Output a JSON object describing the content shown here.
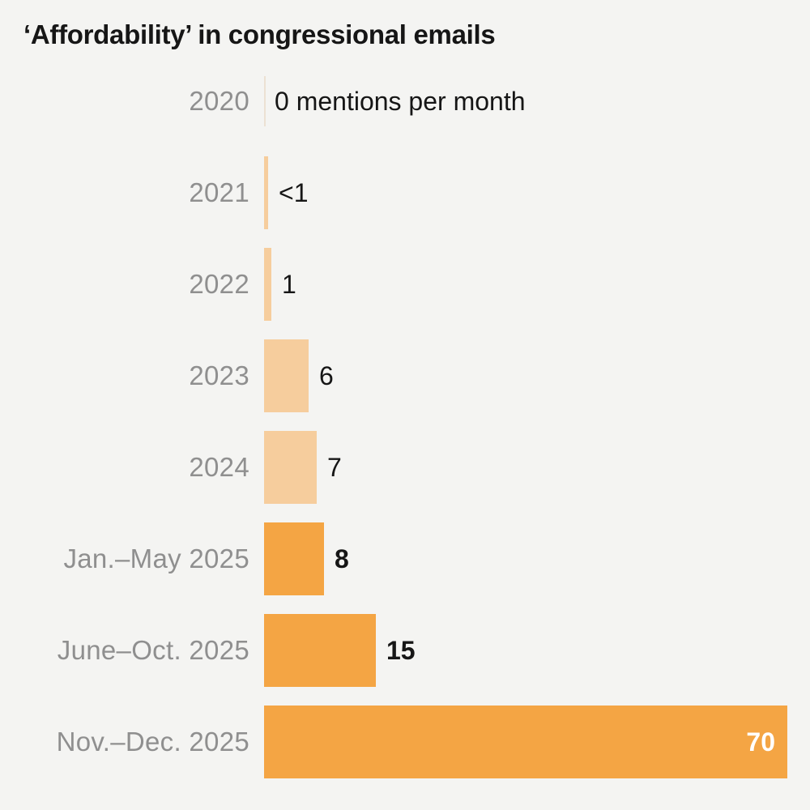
{
  "title": "‘Affordability’ in congressional emails",
  "colors": {
    "background": "#f4f4f2",
    "title_text": "#161616",
    "category_label": "#8f8f8f",
    "value_text": "#161616",
    "value_text_inside": "#ffffff",
    "bar_light": "#f6cd9d",
    "bar_dark": "#f4a544",
    "zero_tick": "#ece1d3"
  },
  "chart_data": {
    "type": "bar",
    "orientation": "horizontal",
    "title": "‘Affordability’ in congressional emails",
    "xlabel": "mentions per month",
    "ylabel": "",
    "xlim": [
      0,
      70
    ],
    "grid": false,
    "legend": "none",
    "categories": [
      "2020",
      "2021",
      "2022",
      "2023",
      "2024",
      "Jan.–May 2025",
      "June–Oct. 2025",
      "Nov.–Dec. 2025"
    ],
    "values": [
      0,
      0.5,
      1,
      6,
      7,
      8,
      15,
      70
    ],
    "rows": [
      {
        "label": "2020",
        "value": 0,
        "value_label": "0 mentions per month",
        "shade": "light",
        "bold": false,
        "label_inside": false
      },
      {
        "label": "2021",
        "value": 0.5,
        "value_label": "<1",
        "shade": "light",
        "bold": false,
        "label_inside": false
      },
      {
        "label": "2022",
        "value": 1,
        "value_label": "1",
        "shade": "light",
        "bold": false,
        "label_inside": false
      },
      {
        "label": "2023",
        "value": 6,
        "value_label": "6",
        "shade": "light",
        "bold": false,
        "label_inside": false
      },
      {
        "label": "2024",
        "value": 7,
        "value_label": "7",
        "shade": "light",
        "bold": false,
        "label_inside": false
      },
      {
        "label": "Jan.–May 2025",
        "value": 8,
        "value_label": "8",
        "shade": "dark",
        "bold": true,
        "label_inside": false
      },
      {
        "label": "June–Oct. 2025",
        "value": 15,
        "value_label": "15",
        "shade": "dark",
        "bold": true,
        "label_inside": false
      },
      {
        "label": "Nov.–Dec. 2025",
        "value": 70,
        "value_label": "70",
        "shade": "dark",
        "bold": true,
        "label_inside": true
      }
    ]
  }
}
